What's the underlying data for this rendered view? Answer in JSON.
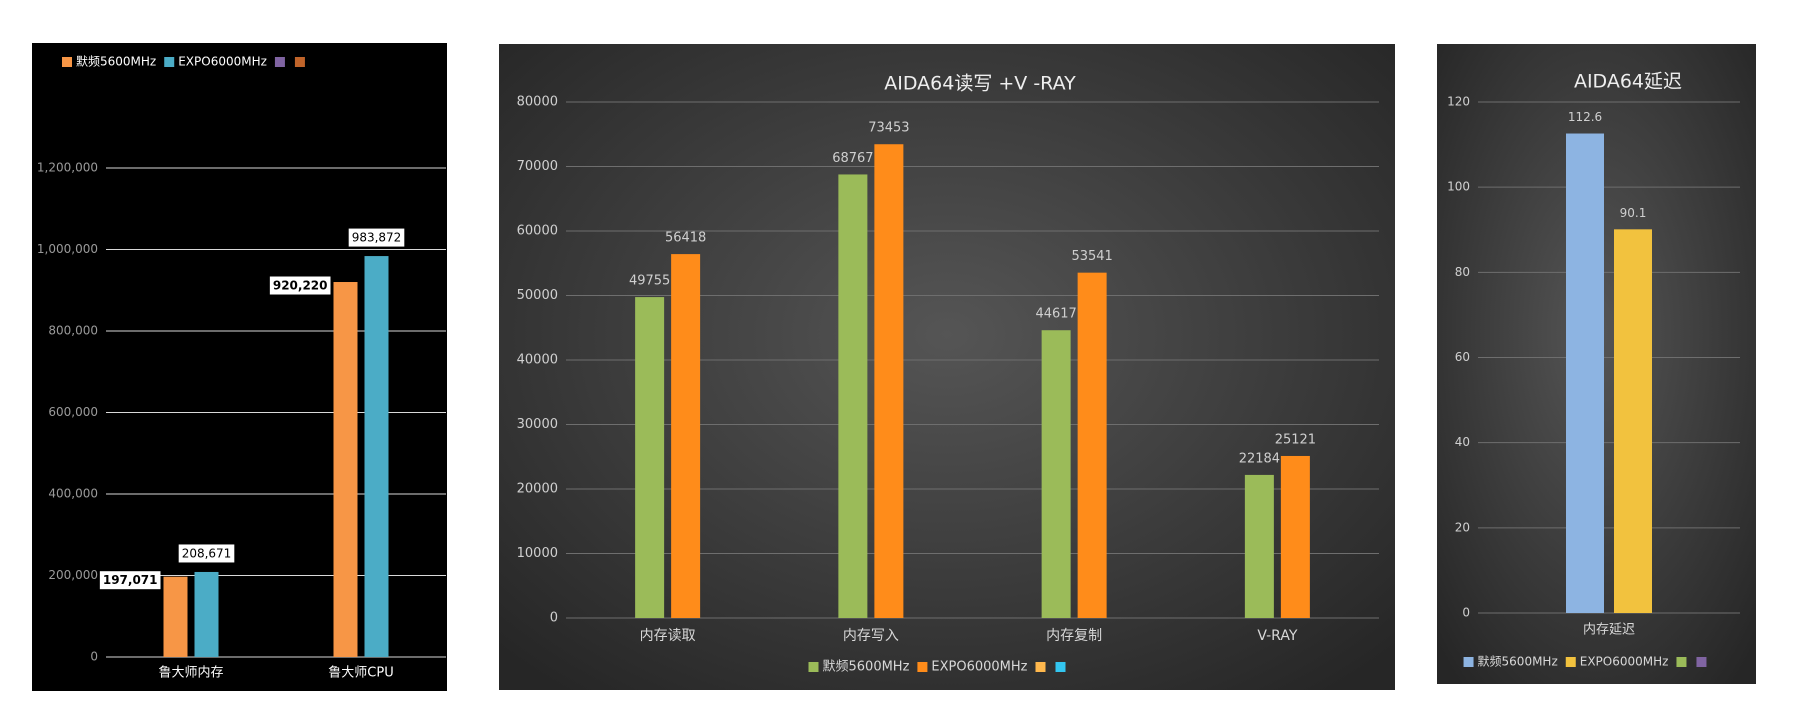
{
  "chart_data": [
    {
      "type": "bar",
      "categories": [
        "鲁大师内存",
        "鲁大师CPU"
      ],
      "series": [
        {
          "name": "默频5600MHz",
          "color": "#f79646",
          "values": [
            197071,
            920220
          ],
          "value_labels": [
            "197,071",
            "920,220"
          ]
        },
        {
          "name": "EXPO6000MHz",
          "color": "#4bacc6",
          "values": [
            208671,
            983872
          ],
          "value_labels": [
            "208,671",
            "983,872"
          ]
        },
        {
          "color": "#8064a2",
          "values": [
            null,
            null
          ]
        },
        {
          "color": "#c0642a",
          "values": [
            null,
            null
          ]
        }
      ],
      "ylim": [
        0,
        1200000
      ],
      "yticks": [
        0,
        {
          "value": 200000,
          "label": "200,000"
        },
        {
          "value": 400000,
          "label": "400,000"
        },
        {
          "value": 600000,
          "label": "600,000"
        },
        {
          "value": 800000,
          "label": "800,000"
        },
        {
          "value": 1000000,
          "label": "1,000,000"
        },
        {
          "value": 1200000,
          "label": "1,200,000"
        }
      ],
      "grid": true,
      "legend": "top"
    },
    {
      "type": "bar",
      "title": "AIDA64读写  +V -RAY",
      "categories": [
        "内存读取",
        "内存写入",
        "内存复制",
        "V-RAY"
      ],
      "series": [
        {
          "name": "默频5600MHz",
          "color": "#9bbb59",
          "values": [
            49755,
            68767,
            44617,
            22184
          ]
        },
        {
          "name": "EXPO6000MHz",
          "color": "#ff8c1a",
          "values": [
            56418,
            73453,
            53541,
            25121
          ]
        },
        {
          "color": "#ffb84d",
          "values": [
            null,
            null,
            null,
            null
          ]
        },
        {
          "color": "#33c6f0",
          "values": [
            null,
            null,
            null,
            null
          ]
        }
      ],
      "ylim": [
        0,
        80000
      ],
      "yticks": [
        0,
        10000,
        20000,
        30000,
        40000,
        50000,
        60000,
        70000,
        80000
      ],
      "grid": true,
      "legend": "bottom"
    },
    {
      "type": "bar",
      "title": "AIDA64延迟",
      "categories": [
        "内存延迟"
      ],
      "series": [
        {
          "name": "默频5600MHz",
          "color": "#8db4e2",
          "values": [
            112.6
          ]
        },
        {
          "name": "EXPO6000MHz",
          "color": "#f2c23e",
          "values": [
            90.1
          ]
        },
        {
          "color": "#9bbb59",
          "values": [
            null
          ]
        },
        {
          "color": "#8064a2",
          "values": [
            null
          ]
        }
      ],
      "ylim": [
        0,
        120
      ],
      "yticks": [
        0,
        20,
        40,
        60,
        80,
        100,
        120
      ],
      "grid": true,
      "legend": "bottom"
    }
  ]
}
